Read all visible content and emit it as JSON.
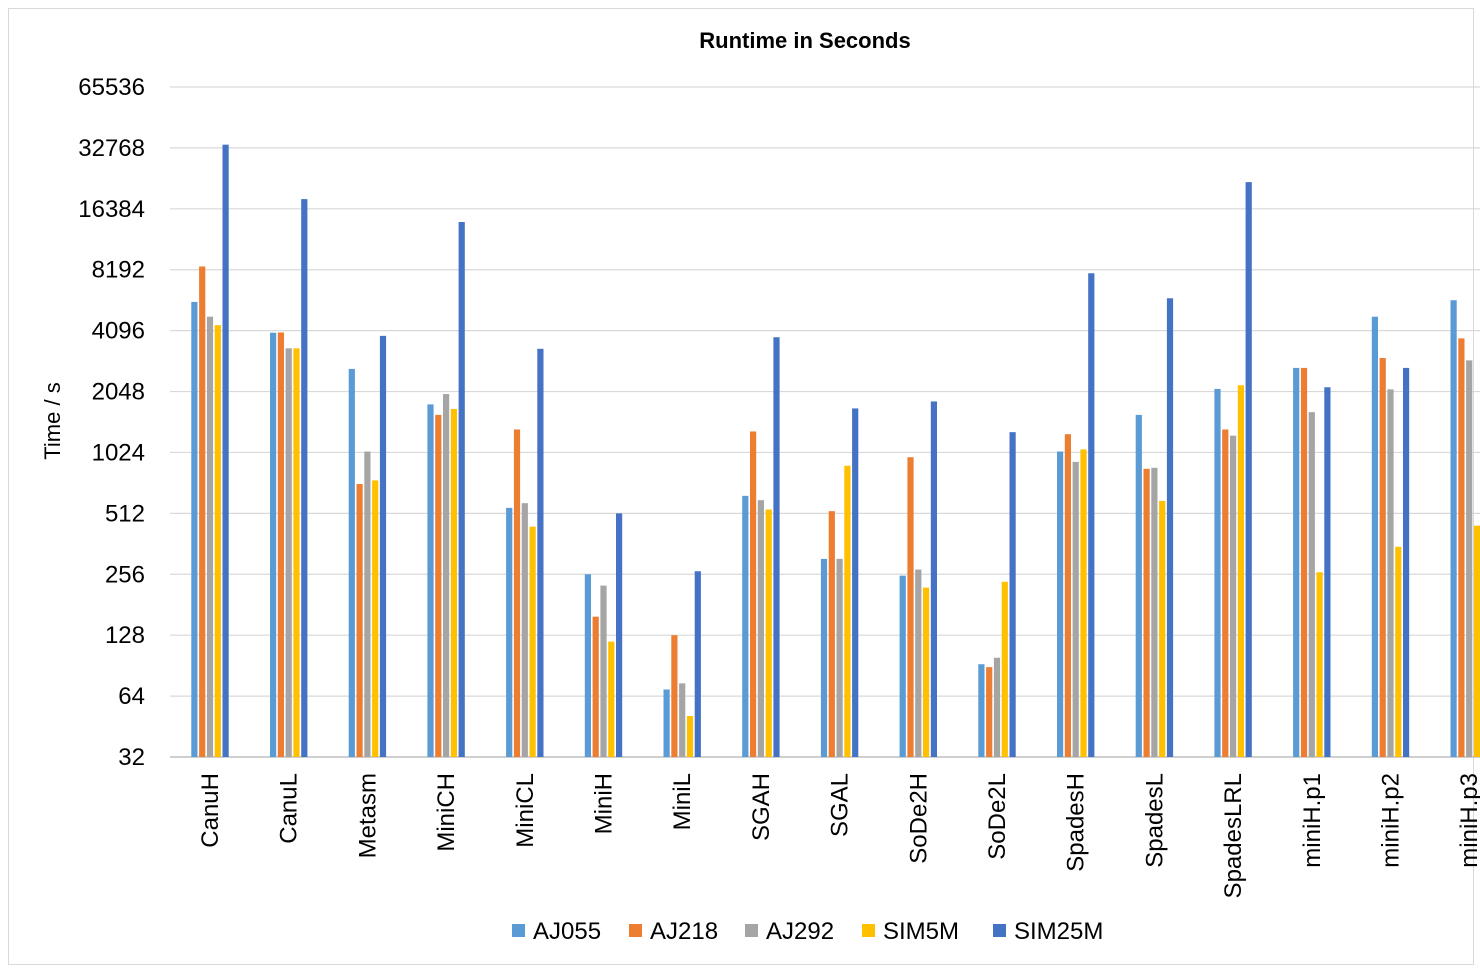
{
  "chart_data": {
    "type": "bar",
    "title": "Runtime in Seconds",
    "xlabel": "",
    "ylabel": "Time / s",
    "yscale": "log2",
    "ylim": [
      32,
      65536
    ],
    "yticks": [
      32,
      64,
      128,
      256,
      512,
      1024,
      2048,
      4096,
      8192,
      16384,
      32768,
      65536
    ],
    "grid": true,
    "legend": "bottom",
    "categories": [
      "CanuH",
      "CanuL",
      "Metasm",
      "MiniCH",
      "MiniCL",
      "MiniH",
      "MiniL",
      "SGAH",
      "SGAL",
      "SoDe2H",
      "SoDe2L",
      "SpadesH",
      "SpadesL",
      "SpadesLRL",
      "miniH.p1",
      "miniH.p2",
      "miniH.p3"
    ],
    "series": [
      {
        "name": "AJ055",
        "color": "#5b9bd5",
        "values": [
          5680,
          4000,
          2650,
          1770,
          545,
          256,
          69,
          625,
          305,
          252,
          92,
          1035,
          1570,
          2110,
          2680,
          4800,
          5790
        ]
      },
      {
        "name": "AJ218",
        "color": "#ed7d31",
        "values": [
          8500,
          4010,
          715,
          1570,
          1330,
          158,
          128,
          1300,
          525,
          970,
          89,
          1260,
          850,
          1330,
          2680,
          3000,
          3750
        ]
      },
      {
        "name": "AJ292",
        "color": "#a5a5a5",
        "values": [
          4800,
          3350,
          1035,
          1990,
          575,
          225,
          74,
          595,
          305,
          270,
          99,
          920,
          860,
          1240,
          1620,
          2100,
          2920
        ]
      },
      {
        "name": "SIM5M",
        "color": "#ffc000",
        "values": [
          4360,
          3350,
          745,
          1680,
          440,
          119,
          51,
          535,
          880,
          220,
          235,
          1060,
          590,
          2200,
          262,
          350,
          445
        ]
      },
      {
        "name": "SIM25M",
        "color": "#4472c4",
        "values": [
          34000,
          18300,
          3860,
          14100,
          3330,
          512,
          265,
          3800,
          1690,
          1830,
          1290,
          7870,
          5920,
          22200,
          2150,
          2680,
          3080
        ]
      }
    ]
  }
}
